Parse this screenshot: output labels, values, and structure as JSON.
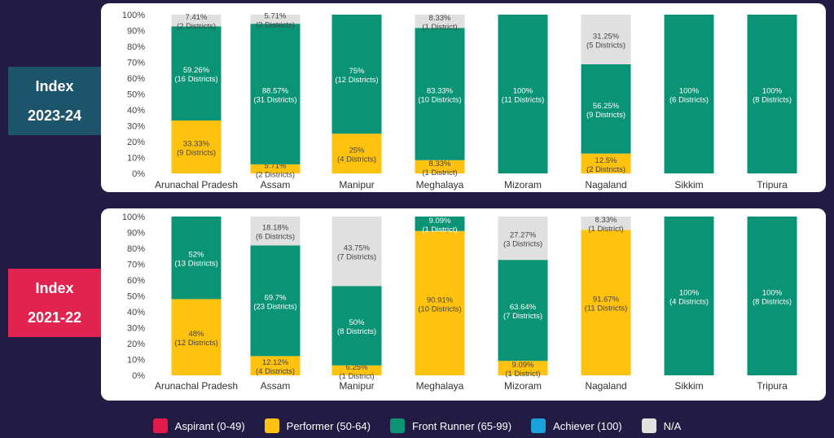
{
  "colors": {
    "aspirant": "#e31b4a",
    "performer": "#ffc20e",
    "front_runner": "#0a9475",
    "achiever": "#1ba1dc",
    "na": "#e0e0e0"
  },
  "legend": [
    {
      "label": "Aspirant (0-49)",
      "color": "#e31b4a"
    },
    {
      "label": "Performer (50-64)",
      "color": "#ffc20e"
    },
    {
      "label": "Front Runner (65-99)",
      "color": "#0a9475"
    },
    {
      "label": "Achiever (100)",
      "color": "#1ba1dc"
    },
    {
      "label": "N/A",
      "color": "#e0e0e0"
    }
  ],
  "chart_data": [
    {
      "type": "bar",
      "stacked": true,
      "title_line1": "Index",
      "title_line2": "2023-24",
      "yticks": [
        "0%",
        "10%",
        "20%",
        "30%",
        "40%",
        "50%",
        "60%",
        "70%",
        "80%",
        "90%",
        "100%"
      ],
      "ylim": [
        0,
        100
      ],
      "categories": [
        "Arunachal Pradesh",
        "Assam",
        "Manipur",
        "Meghalaya",
        "Mizoram",
        "Nagaland",
        "Sikkim",
        "Tripura"
      ],
      "series": [
        {
          "name": "Performer (50-64)",
          "key": "performer",
          "values": [
            33.33,
            5.71,
            25,
            8.33,
            0,
            12.5,
            0,
            0
          ],
          "labels": [
            [
              "33.33%",
              "(9 Districts)"
            ],
            [
              "5.71%",
              "(2 Districts)"
            ],
            [
              "25%",
              "(4 Districts)"
            ],
            [
              "8.33%",
              "(1 District)"
            ],
            null,
            [
              "12.5%",
              "(2 Districts)"
            ],
            null,
            null
          ]
        },
        {
          "name": "Front Runner (65-99)",
          "key": "front_runner",
          "values": [
            59.26,
            88.57,
            75,
            83.33,
            100,
            56.25,
            100,
            100
          ],
          "labels": [
            [
              "59.26%",
              "(16 Districts)"
            ],
            [
              "88.57%",
              "(31 Districts)"
            ],
            [
              "75%",
              "(12 Districts)"
            ],
            [
              "83.33%",
              "(10 Districts)"
            ],
            [
              "100%",
              "(11 Districts)"
            ],
            [
              "56.25%",
              "(9 Districts)"
            ],
            [
              "100%",
              "(6 Districts)"
            ],
            [
              "100%",
              "(8 Districts)"
            ]
          ]
        },
        {
          "name": "N/A",
          "key": "na",
          "values": [
            7.41,
            5.71,
            0,
            8.33,
            0,
            31.25,
            0,
            0
          ],
          "labels": [
            [
              "7.41%",
              "(2 Districts)"
            ],
            [
              "5.71%",
              "(2 Districts)"
            ],
            null,
            [
              "8.33%",
              "(1 District)"
            ],
            null,
            [
              "31.25%",
              "(5 Districts)"
            ],
            null,
            null
          ]
        }
      ]
    },
    {
      "type": "bar",
      "stacked": true,
      "title_line1": "Index",
      "title_line2": "2021-22",
      "yticks": [
        "0%",
        "10%",
        "20%",
        "30%",
        "40%",
        "50%",
        "60%",
        "70%",
        "80%",
        "90%",
        "100%"
      ],
      "ylim": [
        0,
        100
      ],
      "categories": [
        "Arunachal Pradesh",
        "Assam",
        "Manipur",
        "Meghalaya",
        "Mizoram",
        "Nagaland",
        "Sikkim",
        "Tripura"
      ],
      "series": [
        {
          "name": "Performer (50-64)",
          "key": "performer",
          "values": [
            48,
            12.12,
            6.25,
            90.91,
            9.09,
            91.67,
            0,
            0
          ],
          "labels": [
            [
              "48%",
              "(12 Districts)"
            ],
            [
              "12.12%",
              "(4 Districts)"
            ],
            [
              "6.25%",
              "(1 District)"
            ],
            [
              "90.91%",
              "(10 Districts)"
            ],
            [
              "9.09%",
              "(1 District)"
            ],
            [
              "91.67%",
              "(11 Districts)"
            ],
            null,
            null
          ]
        },
        {
          "name": "Front Runner (65-99)",
          "key": "front_runner",
          "values": [
            52,
            69.7,
            50,
            9.09,
            63.64,
            0,
            100,
            100
          ],
          "labels": [
            [
              "52%",
              "(13 Districts)"
            ],
            [
              "69.7%",
              "(23 Districts)"
            ],
            [
              "50%",
              "(8 Districts)"
            ],
            [
              "9.09%",
              "(1 District)"
            ],
            [
              "63.64%",
              "(7 Districts)"
            ],
            null,
            [
              "100%",
              "(4 Districts)"
            ],
            [
              "100%",
              "(8 Districts)"
            ]
          ]
        },
        {
          "name": "N/A",
          "key": "na",
          "values": [
            0,
            18.18,
            43.75,
            0,
            27.27,
            8.33,
            0,
            0
          ],
          "labels": [
            null,
            [
              "18.18%",
              "(6 Districts)"
            ],
            [
              "43.75%",
              "(7 Districts)"
            ],
            null,
            [
              "27.27%",
              "(3 Districts)"
            ],
            [
              "8.33%",
              "(1 District)"
            ],
            null,
            null
          ]
        }
      ]
    }
  ]
}
